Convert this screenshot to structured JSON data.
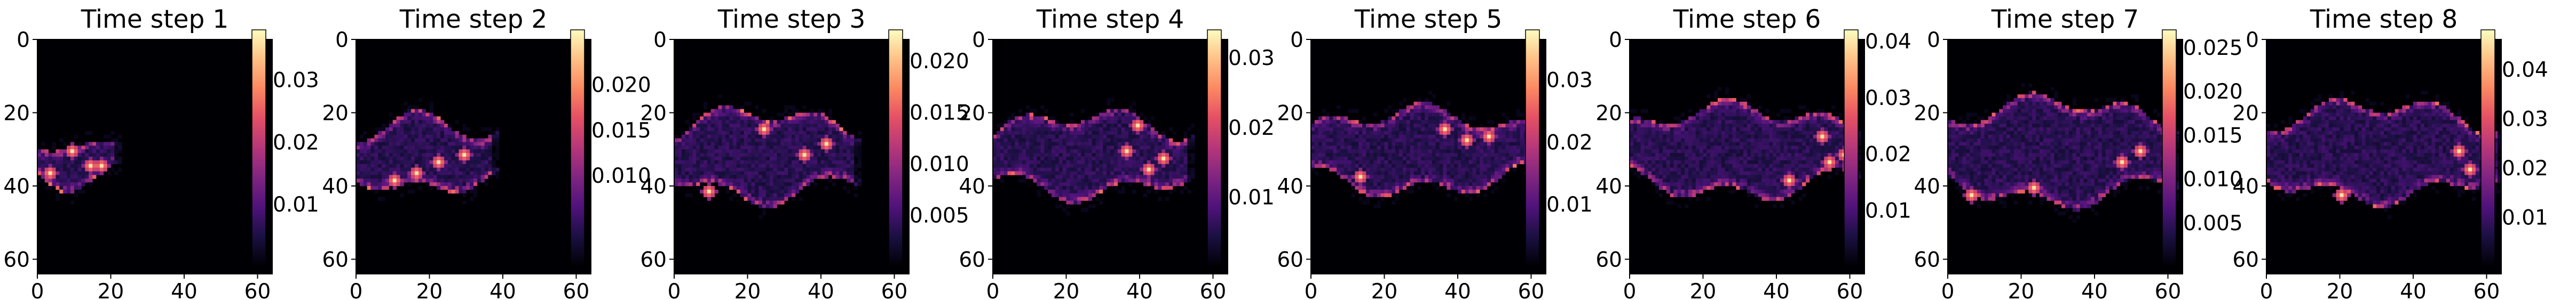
{
  "chart_data": {
    "type": "heatmap",
    "colormap": "magma",
    "grid": false,
    "xlim": [
      0,
      64
    ],
    "ylim": [
      64,
      0
    ],
    "x_ticks": [
      "0",
      "20",
      "40",
      "60"
    ],
    "y_ticks": [
      "0",
      "20",
      "40",
      "60"
    ],
    "panels": [
      {
        "title": "Time step 1",
        "colorbar_range": [
          0,
          0.038
        ],
        "colorbar_ticks": [
          0.01,
          0.02,
          0.03
        ],
        "colorbar_labels": [
          "0.01",
          "0.02",
          "0.03"
        ],
        "plume": {
          "x_start": 0,
          "x_end": 20,
          "center_y": 33,
          "half_width": 6,
          "hotspots": [
            [
              14,
              34
            ],
            [
              17,
              34
            ],
            [
              9,
              30
            ],
            [
              3,
              36
            ]
          ]
        }
      },
      {
        "title": "Time step 2",
        "colorbar_range": [
          0,
          0.026
        ],
        "colorbar_ticks": [
          0.01,
          0.015,
          0.02
        ],
        "colorbar_labels": [
          "0.010",
          "0.015",
          "0.020"
        ],
        "plume": {
          "x_start": 0,
          "x_end": 36,
          "center_y": 31,
          "half_width": 10,
          "hotspots": [
            [
              29,
              31
            ],
            [
              10,
              38
            ],
            [
              16,
              36
            ],
            [
              22,
              33
            ]
          ]
        }
      },
      {
        "title": "Time step 3",
        "colorbar_range": [
          0,
          0.023
        ],
        "colorbar_ticks": [
          0.005,
          0.01,
          0.015,
          0.02
        ],
        "colorbar_labels": [
          "0.005",
          "0.010",
          "0.015",
          "0.020"
        ],
        "plume": {
          "x_start": 0,
          "x_end": 48,
          "center_y": 31,
          "half_width": 12,
          "hotspots": [
            [
              35,
              31
            ],
            [
              24,
              24
            ],
            [
              9,
              41
            ],
            [
              41,
              28
            ]
          ]
        }
      },
      {
        "title": "Time step 4",
        "colorbar_range": [
          0,
          0.034
        ],
        "colorbar_ticks": [
          0.01,
          0.02,
          0.03
        ],
        "colorbar_labels": [
          "0.01",
          "0.02",
          "0.03"
        ],
        "plume": {
          "x_start": 0,
          "x_end": 52,
          "center_y": 31,
          "half_width": 11,
          "hotspots": [
            [
              46,
              32
            ],
            [
              36,
              30
            ],
            [
              39,
              23
            ],
            [
              42,
              35
            ]
          ]
        }
      },
      {
        "title": "Time step 5",
        "colorbar_range": [
          0,
          0.038
        ],
        "colorbar_ticks": [
          0.01,
          0.02,
          0.03
        ],
        "colorbar_labels": [
          "0.01",
          "0.02",
          "0.03"
        ],
        "plume": {
          "x_start": 0,
          "x_end": 58,
          "center_y": 30,
          "half_width": 11,
          "hotspots": [
            [
              42,
              27
            ],
            [
              48,
              26
            ],
            [
              13,
              37
            ],
            [
              36,
              24
            ]
          ]
        }
      },
      {
        "title": "Time step 6",
        "colorbar_range": [
          0,
          0.042
        ],
        "colorbar_ticks": [
          0.01,
          0.02,
          0.03,
          0.04
        ],
        "colorbar_labels": [
          "0.01",
          "0.02",
          "0.03",
          "0.04"
        ],
        "plume": {
          "x_start": 0,
          "x_end": 60,
          "center_y": 30,
          "half_width": 12,
          "hotspots": [
            [
              52,
              26
            ],
            [
              54,
              33
            ],
            [
              43,
              38
            ],
            [
              58,
              31
            ]
          ]
        }
      },
      {
        "title": "Time step 7",
        "colorbar_range": [
          0,
          0.027
        ],
        "colorbar_ticks": [
          0.005,
          0.01,
          0.015,
          0.02,
          0.025
        ],
        "colorbar_labels": [
          "0.005",
          "0.010",
          "0.015",
          "0.020",
          "0.025"
        ],
        "plume": {
          "x_start": 0,
          "x_end": 60,
          "center_y": 30,
          "half_width": 14,
          "hotspots": [
            [
              47,
              33
            ],
            [
              6,
              42
            ],
            [
              23,
              40
            ],
            [
              52,
              30
            ]
          ]
        }
      },
      {
        "title": "Time step 8",
        "colorbar_range": [
          0,
          0.048
        ],
        "colorbar_ticks": [
          0.01,
          0.02,
          0.03,
          0.04
        ],
        "colorbar_labels": [
          "0.01",
          "0.02",
          "0.03",
          "0.04"
        ],
        "plume": {
          "x_start": 0,
          "x_end": 62,
          "center_y": 30,
          "half_width": 13,
          "hotspots": [
            [
              55,
              35
            ],
            [
              52,
              30
            ],
            [
              20,
              42
            ],
            [
              60,
              26
            ]
          ]
        }
      }
    ]
  }
}
